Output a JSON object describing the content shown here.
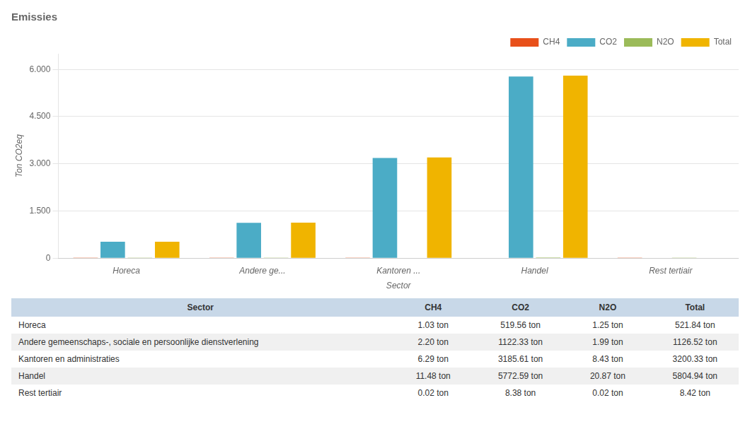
{
  "chart_data": {
    "type": "bar",
    "title": "Emissies",
    "xlabel": "Sector",
    "ylabel": "Ton CO2eq",
    "categories": [
      "Horeca",
      "Andere ge...",
      "Kantoren ...",
      "Handel",
      "Rest tertiair"
    ],
    "series": [
      {
        "name": "CH4",
        "color": "#E8501A",
        "values": [
          1.03,
          2.2,
          6.29,
          11.48,
          0.02
        ]
      },
      {
        "name": "CO2",
        "color": "#4BACC6",
        "values": [
          519.56,
          1122.33,
          3185.61,
          5772.59,
          8.38
        ]
      },
      {
        "name": "N2O",
        "color": "#9BBB59",
        "values": [
          1.25,
          1.99,
          8.43,
          20.87,
          0.02
        ]
      },
      {
        "name": "Total",
        "color": "#F0B400",
        "values": [
          521.84,
          1126.52,
          3200.33,
          5804.94,
          8.42
        ]
      }
    ],
    "ylim": [
      0,
      6500
    ],
    "yticks": [
      0,
      {
        "value": 1500,
        "label": "1.500"
      },
      {
        "value": 3000,
        "label": "3.000"
      },
      {
        "value": 4500,
        "label": "4.500"
      },
      {
        "value": 6000,
        "label": "6.000"
      }
    ],
    "grid": true,
    "legend": "upper right",
    "table": {
      "columns": [
        "Sector",
        "CH4",
        "CO2",
        "N2O",
        "Total"
      ],
      "rows": [
        [
          "Horeca",
          "1.03 ton",
          "519.56 ton",
          "1.25 ton",
          "521.84 ton"
        ],
        [
          "Andere gemeenschaps-, sociale en persoonlijke dienstverlening",
          "2.20 ton",
          "1122.33 ton",
          "1.99 ton",
          "1126.52 ton"
        ],
        [
          "Kantoren en administraties",
          "6.29 ton",
          "3185.61 ton",
          "8.43 ton",
          "3200.33 ton"
        ],
        [
          "Handel",
          "11.48 ton",
          "5772.59 ton",
          "20.87 ton",
          "5804.94 ton"
        ],
        [
          "Rest tertiair",
          "0.02 ton",
          "8.38 ton",
          "0.02 ton",
          "8.42 ton"
        ]
      ]
    }
  }
}
